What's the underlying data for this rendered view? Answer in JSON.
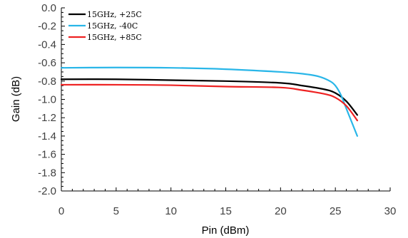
{
  "chart_data": {
    "type": "line",
    "xlabel": "Pin (dBm)",
    "ylabel": "Gain (dB)",
    "xlim": [
      0,
      30
    ],
    "ylim": [
      -2.0,
      0.0
    ],
    "xticks": [
      0,
      5,
      10,
      15,
      20,
      25,
      30
    ],
    "yticks": [
      0.0,
      -0.2,
      -0.4,
      -0.6,
      -0.8,
      -1.0,
      -1.2,
      -1.4,
      -1.6,
      -1.8,
      -2.0
    ],
    "ytick_labels": [
      "0.0",
      "-0.2",
      "-0.4",
      "-0.6",
      "-0.8",
      "-1.0",
      "-1.2",
      "-1.4",
      "-1.6",
      "-1.8",
      "-2.0"
    ],
    "xtick_labels": [
      "0",
      "5",
      "10",
      "15",
      "20",
      "25",
      "30"
    ],
    "grid": false,
    "legend_position": "top-left",
    "series": [
      {
        "name": "15GHz, +25C",
        "color": "#000000",
        "x": [
          0,
          5,
          10,
          15,
          20,
          22,
          24,
          25,
          26,
          27
        ],
        "y": [
          -0.78,
          -0.78,
          -0.79,
          -0.8,
          -0.82,
          -0.85,
          -0.89,
          -0.93,
          -1.02,
          -1.17
        ]
      },
      {
        "name": "15GHz, -40C",
        "color": "#29b6e8",
        "x": [
          0,
          5,
          10,
          15,
          20,
          22,
          23.5,
          24.5,
          25,
          25.5,
          26,
          26.5,
          27
        ],
        "y": [
          -0.655,
          -0.652,
          -0.655,
          -0.67,
          -0.7,
          -0.72,
          -0.75,
          -0.8,
          -0.85,
          -0.95,
          -1.1,
          -1.25,
          -1.4
        ]
      },
      {
        "name": "15GHz, +85C",
        "color": "#ee2222",
        "x": [
          0,
          5,
          10,
          15,
          20,
          22,
          24,
          25,
          26,
          27
        ],
        "y": [
          -0.84,
          -0.84,
          -0.845,
          -0.86,
          -0.87,
          -0.9,
          -0.94,
          -0.98,
          -1.07,
          -1.23
        ]
      }
    ]
  }
}
